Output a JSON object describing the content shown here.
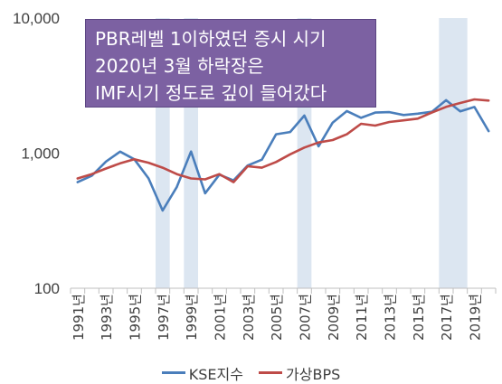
{
  "chart_data": {
    "type": "line",
    "yscale": "log",
    "ylim": [
      100,
      10000
    ],
    "yticks": [
      100,
      1000,
      10000
    ],
    "yticklabels": [
      "100",
      "1,000",
      "10,000"
    ],
    "x": [
      1991,
      1992,
      1993,
      1994,
      1995,
      1996,
      1997,
      1998,
      1999,
      2000,
      2001,
      2002,
      2003,
      2004,
      2005,
      2006,
      2007,
      2008,
      2009,
      2010,
      2011,
      2012,
      2013,
      2014,
      2015,
      2016,
      2017,
      2018,
      2019,
      2020
    ],
    "xticklabels": [
      "1991년",
      "1993년",
      "1995년",
      "1997년",
      "1999년",
      "2001년",
      "2003년",
      "2005년",
      "2007년",
      "2009년",
      "2011년",
      "2013년",
      "2015년",
      "2017년",
      "2019년"
    ],
    "shaded_years": [
      1997,
      1999,
      2007,
      2017,
      2018
    ],
    "series": [
      {
        "name": "KSE지수",
        "color": "#4a7ebb",
        "values": [
          610,
          680,
          866,
          1027,
          900,
          651,
          376,
          562,
          1028,
          505,
          693,
          628,
          810,
          895,
          1379,
          1434,
          1897,
          1124,
          1682,
          2051,
          1826,
          1997,
          2011,
          1916,
          1961,
          2026,
          2467,
          2041,
          2197,
          1457
        ]
      },
      {
        "name": "가상BPS",
        "color": "#be4b48",
        "values": [
          650,
          700,
          770,
          840,
          900,
          850,
          780,
          700,
          650,
          640,
          700,
          610,
          800,
          780,
          860,
          980,
          1100,
          1200,
          1250,
          1380,
          1650,
          1600,
          1700,
          1750,
          1800,
          2000,
          2200,
          2350,
          2500,
          2450
        ]
      }
    ]
  },
  "callout": {
    "lines": [
      "PBR레벨 1이하였던 증시 시기",
      "2020년 3월 하락장은",
      "IMF시기 정도로 깊이 들어갔다"
    ]
  },
  "legend": [
    {
      "label": "KSE지수",
      "color": "#4a7ebb"
    },
    {
      "label": "가상BPS",
      "color": "#be4b48"
    }
  ],
  "colors": {
    "shade": "#dce6f1",
    "axis": "#bfbfbf",
    "text": "#404040"
  }
}
